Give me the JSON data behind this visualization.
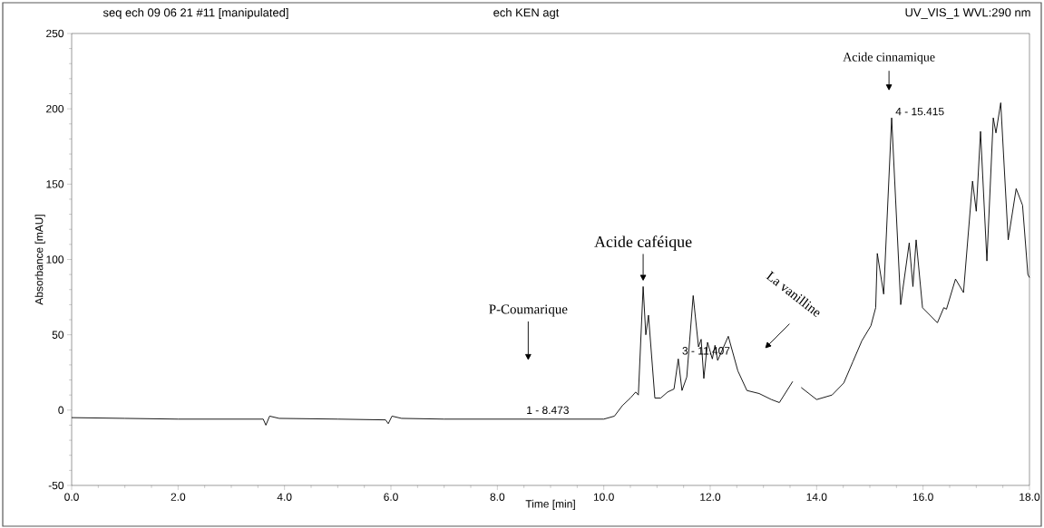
{
  "chart_data": {
    "type": "line",
    "title": "seq ech  09 06 21 #11 [manipulated]",
    "subtitle": "ech KEN  agt",
    "annotations": [
      "P-Coumarique",
      {
        "text": "Acide caféique",
        "x": 10.74,
        "y": 82
      },
      "La vanilline",
      "Acide cinnamique",
      {
        "text": "1 - 8.473",
        "x": 8.473,
        "y": -6
      },
      {
        "text": "3 - 11.407",
        "x": 11.4,
        "y": 34
      },
      {
        "text": "4 - 15.415",
        "x": 15.41,
        "y": 194
      },
      "UV_VIS_1 WVL:290 nm"
    ],
    "xlabel": "Time [min]",
    "ylabel": "Absorbance [mAU]",
    "series": [
      {
        "color": "#000000",
        "x": [
          0,
          1.0,
          2.0,
          3.0,
          3.6,
          3.65,
          3.72,
          3.9,
          5.0,
          5.9,
          5.95,
          6.02,
          6.2,
          7.0,
          8.0,
          9.0,
          10.0,
          10.2,
          10.35,
          10.5,
          10.6,
          10.65,
          10.74,
          10.79,
          10.84,
          10.96,
          11.07,
          11.2,
          11.32,
          11.4,
          11.47,
          11.56,
          11.68,
          11.78,
          11.83,
          11.88,
          11.95,
          12.04,
          12.09,
          12.14,
          12.34,
          12.52,
          12.69,
          12.92,
          13.15,
          13.3,
          13.55,
          13.6,
          13.71,
          14.0,
          14.29,
          14.51,
          14.68,
          14.85,
          15.02,
          15.11,
          15.14,
          15.26,
          15.41,
          15.58,
          15.74,
          15.81,
          15.87,
          15.99,
          16.27,
          16.39,
          16.44,
          16.61,
          16.76,
          16.93,
          17.0,
          17.08,
          17.2,
          17.32,
          17.37,
          17.46,
          17.6,
          17.75,
          17.87,
          17.97,
          18.0
        ],
        "values": [
          -5,
          -5.5,
          -6,
          -6,
          -6,
          -10,
          -4,
          -5.5,
          -6,
          -6.5,
          -9,
          -4,
          -5.5,
          -6,
          -6,
          -6,
          -6,
          -4,
          3,
          8,
          12,
          10,
          82,
          50,
          63,
          8,
          8,
          12,
          14,
          34,
          13,
          22,
          76,
          42,
          47,
          21,
          45,
          34,
          43,
          33,
          49,
          26,
          13,
          11,
          7,
          5,
          19,
          null,
          15,
          7,
          10,
          18,
          32,
          46,
          56,
          68,
          104,
          77,
          194,
          70,
          111,
          82,
          113,
          68,
          58,
          68,
          67,
          87,
          78,
          152,
          132,
          185,
          99,
          194,
          184,
          204,
          113,
          147,
          136,
          90,
          88
        ]
      }
    ],
    "xlim": [
      0,
      18
    ],
    "ylim": [
      -50,
      250
    ],
    "xticks": [
      {
        "value": 0,
        "label": "0.0"
      },
      {
        "value": 2,
        "label": "2.0"
      },
      {
        "value": 4,
        "label": "4.0"
      },
      {
        "value": 6,
        "label": "6.0"
      },
      {
        "value": 8,
        "label": "8.0"
      },
      {
        "value": 10,
        "label": "10.0"
      },
      {
        "value": 12,
        "label": "12.0"
      },
      {
        "value": 14,
        "label": "14.0"
      },
      {
        "value": 16,
        "label": "16.0"
      },
      {
        "value": 18,
        "label": "18.0"
      }
    ],
    "yticks": [
      -50,
      0,
      50,
      100,
      150,
      200,
      250
    ],
    "grid": false,
    "marker": "none",
    "line_style": "solid"
  }
}
